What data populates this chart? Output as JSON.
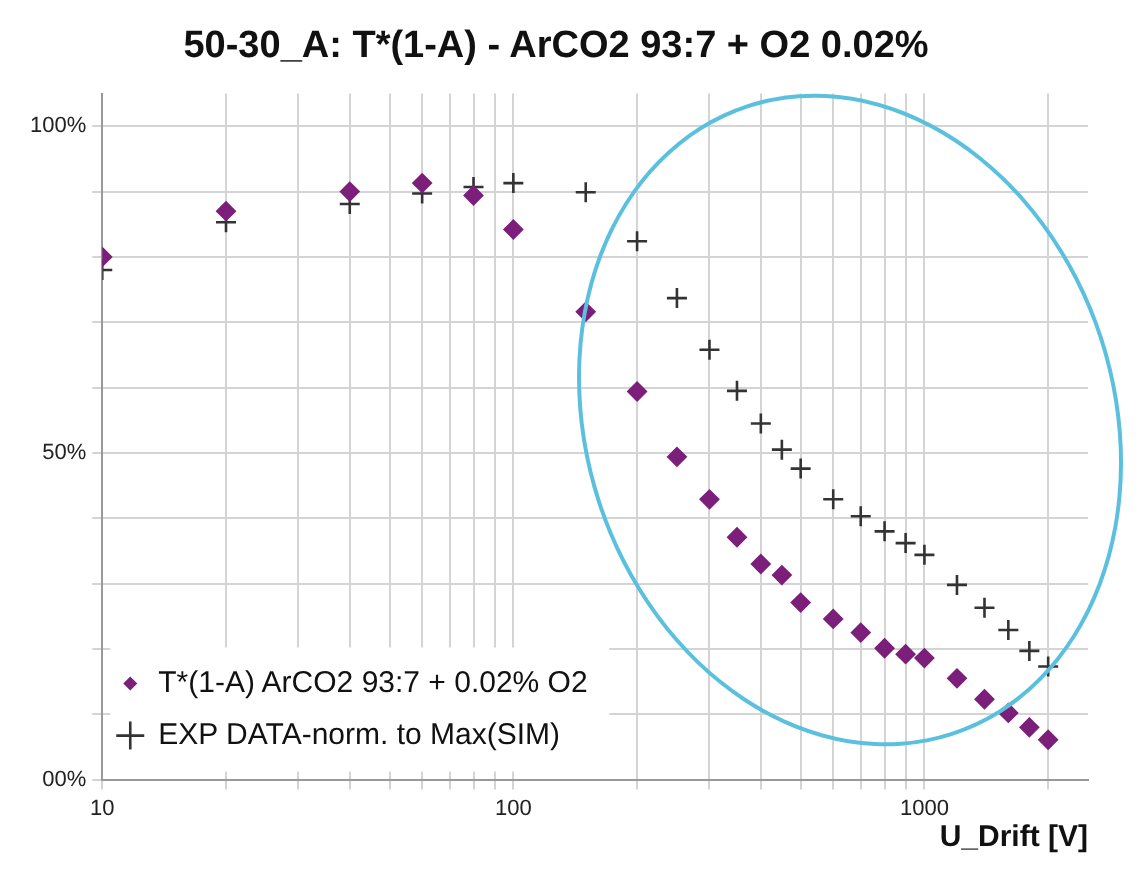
{
  "chart_data": {
    "type": "scatter",
    "title": "50-30_A: T*(1-A) - ArCO2 93:7 + O2 0.02%",
    "xlabel": "U_Drift [V]",
    "log": "x",
    "grid": true,
    "legend": "bottom left",
    "xlim": [
      10,
      2500
    ],
    "xticks": [
      10,
      {
        "value": 20,
        "label": null
      },
      {
        "value": 30,
        "label": null
      },
      {
        "value": 40,
        "label": null
      },
      {
        "value": 50,
        "label": null
      },
      {
        "value": 60,
        "label": null
      },
      {
        "value": 70,
        "label": null
      },
      {
        "value": 80,
        "label": null
      },
      {
        "value": 90,
        "label": null
      },
      100,
      {
        "value": 200,
        "label": null
      },
      {
        "value": 300,
        "label": null
      },
      {
        "value": 400,
        "label": null
      },
      {
        "value": 500,
        "label": null
      },
      {
        "value": 600,
        "label": null
      },
      {
        "value": 700,
        "label": null
      },
      {
        "value": 800,
        "label": null
      },
      {
        "value": 900,
        "label": null
      },
      1000,
      {
        "value": 2000,
        "label": null
      }
    ],
    "ylim": [
      0,
      105
    ],
    "yticks": [
      {
        "value": 0,
        "label": "00%"
      },
      {
        "value": 10,
        "label": null
      },
      {
        "value": 20,
        "label": null
      },
      {
        "value": 30,
        "label": null
      },
      {
        "value": 40,
        "label": null
      },
      {
        "value": 50,
        "label": "50%"
      },
      {
        "value": 60,
        "label": null
      },
      {
        "value": 70,
        "label": null
      },
      {
        "value": 80,
        "label": null
      },
      {
        "value": 90,
        "label": null
      },
      {
        "value": 100,
        "label": "100%"
      }
    ],
    "series": [
      {
        "name": "T*(1-A) ArCO2 93:7 + 0.02% O2",
        "color": "#7b1f7a",
        "marker": "diamond",
        "x": [
          10,
          20,
          40,
          60,
          80,
          100,
          150,
          200,
          250,
          300,
          350,
          400,
          450,
          500,
          600,
          700,
          800,
          900,
          1000,
          1200,
          1400,
          1600,
          1800,
          2000
        ],
        "values": [
          80,
          87,
          90,
          91.3,
          89.4,
          84.2,
          71.6,
          59.4,
          49.4,
          42.9,
          37.1,
          33.0,
          31.3,
          27.1,
          24.6,
          22.5,
          20.1,
          19.2,
          18.6,
          15.5,
          12.3,
          10.2,
          8.0,
          6.1
        ]
      },
      {
        "name": "EXP DATA-norm. to Max(SIM)",
        "color": "#333333",
        "marker": "cross",
        "x": [
          10,
          20,
          40,
          60,
          80,
          100,
          150,
          200,
          250,
          300,
          350,
          400,
          450,
          500,
          600,
          700,
          800,
          900,
          1000,
          1200,
          1400,
          1600,
          1800,
          2000
        ],
        "values": [
          78.0,
          85.3,
          88.1,
          89.7,
          90.7,
          91.3,
          89.9,
          82.4,
          73.7,
          65.8,
          59.5,
          54.5,
          50.5,
          47.6,
          42.9,
          40.3,
          38.0,
          36.2,
          34.4,
          29.8,
          26.3,
          22.9,
          19.7,
          17.3
        ]
      }
    ]
  }
}
